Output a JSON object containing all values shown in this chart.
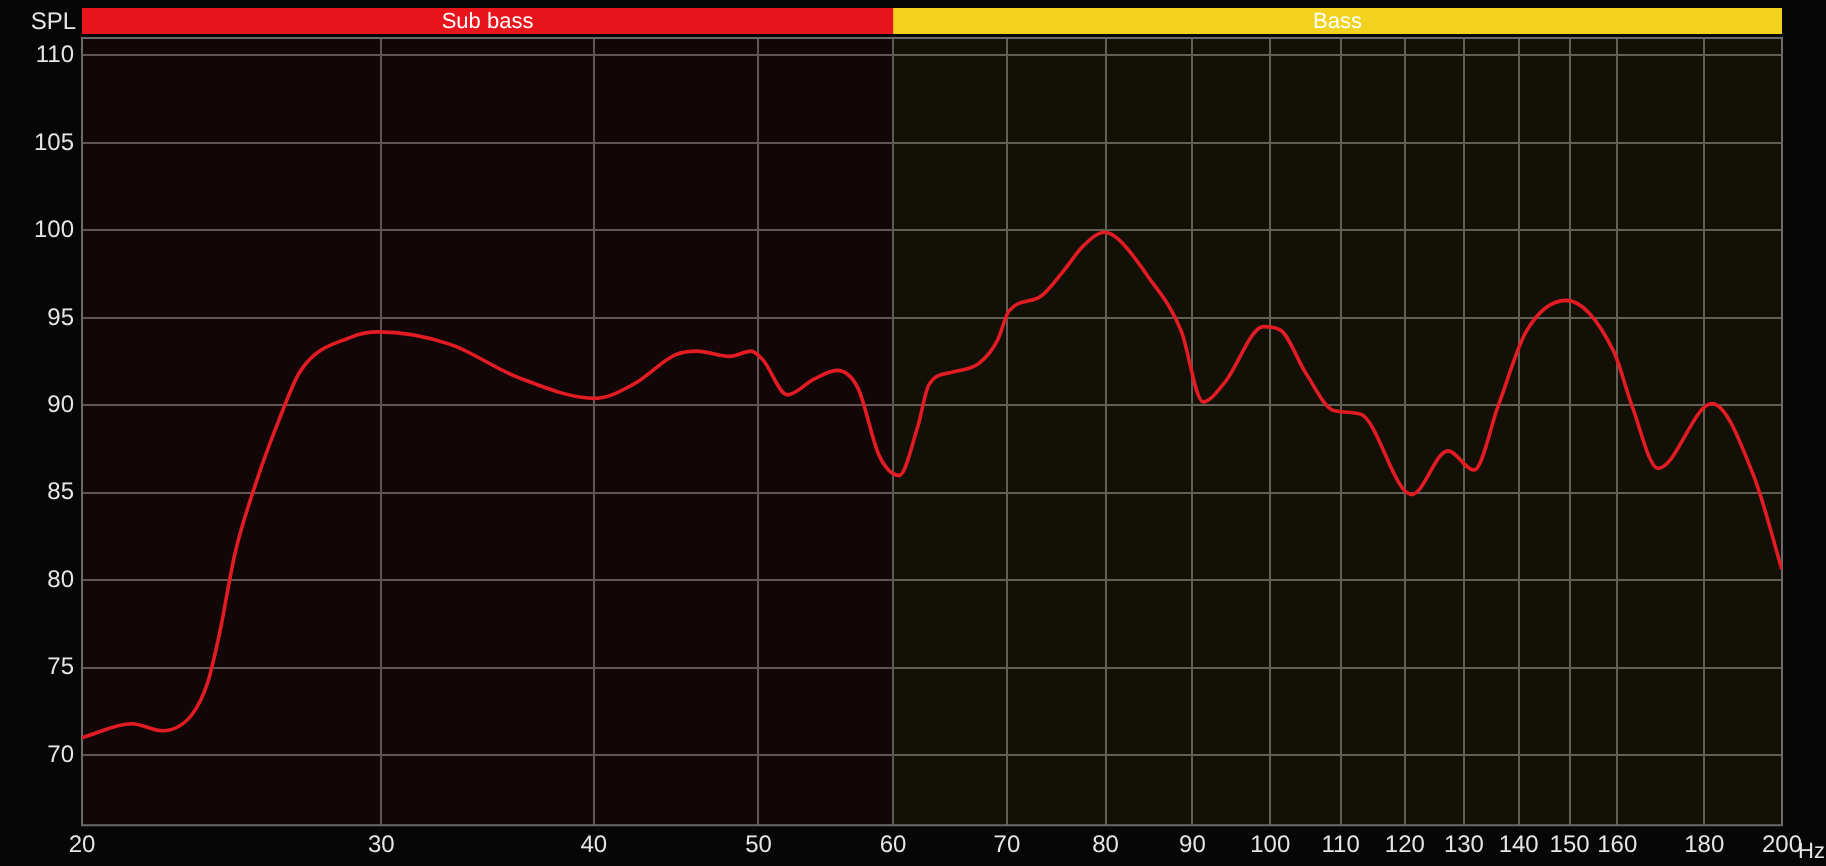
{
  "chart_data": {
    "type": "line",
    "ylabel": "SPL",
    "xlabel": "Hz",
    "log": "x",
    "grid": true,
    "legend": false,
    "marker": "none",
    "line_style": "solid",
    "xlim": [
      20,
      200
    ],
    "xticks": [
      20,
      30,
      40,
      50,
      60,
      70,
      80,
      90,
      100,
      110,
      120,
      130,
      140,
      150,
      160,
      180,
      200
    ],
    "ylim": [
      66,
      111
    ],
    "yticks": [
      70,
      75,
      80,
      85,
      90,
      95,
      100,
      105,
      110
    ],
    "bands": [
      {
        "axis": "x",
        "from": 20,
        "to": 60,
        "label": "Sub bass",
        "color": "#e8151c"
      },
      {
        "axis": "x",
        "from": 60,
        "to": 200,
        "label": "Bass",
        "color": "#f2d21e"
      }
    ],
    "series": [
      {
        "color": "#e31b23",
        "x": [
          20,
          21.4,
          22.3,
          23.2,
          23.7,
          24.1,
          24.6,
          25.3,
          26.1,
          26.9,
          28.8,
          29.9,
          32.9,
          36.1,
          40.1,
          42.2,
          44.7,
          46,
          48.1,
          49.5,
          50.3,
          52,
          53.9,
          55.6,
          57.2,
          58.9,
          60.5,
          62,
          63,
          65,
          67.4,
          69.1,
          70.2,
          73.2,
          75.6,
          77.6,
          79.9,
          81.4,
          84.7,
          88.6,
          91.3,
          94,
          99.1,
          101.4,
          105,
          109,
          113,
          121.1,
          127.2,
          131.8,
          136.2,
          141.4,
          149.3,
          159.2,
          163.2,
          169.1,
          181.9,
          192.6,
          200
        ],
        "values": [
          71,
          71.8,
          71.4,
          72.3,
          74.1,
          77,
          81.5,
          85.5,
          89.1,
          92,
          93.9,
          94.2,
          93.5,
          91.6,
          90.4,
          91.2,
          92.9,
          93.1,
          92.8,
          93.1,
          92.6,
          90.6,
          91.5,
          92,
          91,
          87.1,
          86,
          88.7,
          91.2,
          91.9,
          92.4,
          93.7,
          95.4,
          96.2,
          97.7,
          99.1,
          99.9,
          99.5,
          97.4,
          94.3,
          90.2,
          91.3,
          94.5,
          94.3,
          91.8,
          89.7,
          89.5,
          84.9,
          87.4,
          86.3,
          90,
          94.2,
          96,
          93.1,
          90,
          86.4,
          90.1,
          85.9,
          80.6
        ]
      }
    ]
  }
}
